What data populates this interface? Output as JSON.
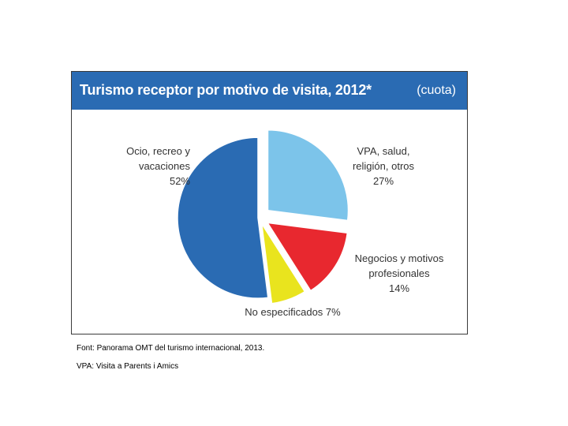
{
  "chart_data": {
    "type": "pie",
    "title": "Turismo receptor por motivo de visita, 2012*",
    "unit": "(cuota)",
    "slices": [
      {
        "label_lines": [
          "Ocio, recreo y",
          "vacaciones"
        ],
        "value_label": "52%",
        "value": 52,
        "color": "#2a6bb3"
      },
      {
        "label_lines": [
          "VPA, salud,",
          "religión, otros"
        ],
        "value_label": "27%",
        "value": 27,
        "color": "#7cc4ea"
      },
      {
        "label_lines": [
          "Negocios y motivos",
          "profesionales"
        ],
        "value_label": "14%",
        "value": 14,
        "color": "#e8282f"
      },
      {
        "label_lines": [
          "No especificados 7%"
        ],
        "value_label": "",
        "value": 7,
        "color": "#e9e41e"
      }
    ]
  },
  "footnotes": {
    "source": "Font: Panorama OMT del turismo internacional, 2013.",
    "vpa": "VPA: Visita a Parents i Amics"
  }
}
